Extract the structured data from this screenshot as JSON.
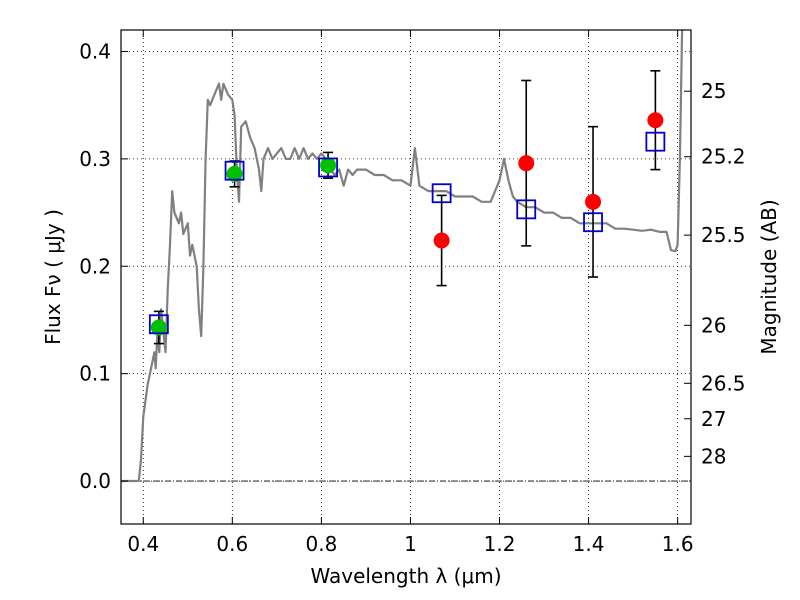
{
  "chart_data": {
    "type": "scatter",
    "xlabel": "Wavelength  λ (μm)",
    "ylabel": "Flux  Fν  ( μJy )",
    "ylabel_right": "Magnitude (AB)",
    "xlim": [
      0.35,
      1.63
    ],
    "ylim": [
      -0.04,
      0.42
    ],
    "grid": true,
    "x_ticks": [
      0.4,
      0.6,
      0.8,
      1.0,
      1.2,
      1.4,
      1.6
    ],
    "x_tick_labels": [
      "0.4",
      "0.6",
      "0.8",
      "1",
      "1.2",
      "1.4",
      "1.6"
    ],
    "y_ticks": [
      0.0,
      0.1,
      0.2,
      0.3,
      0.4
    ],
    "y_tick_labels": [
      "0.0",
      "0.1",
      "0.2",
      "0.3",
      "0.4"
    ],
    "right_ticks": [
      {
        "label": "25",
        "flux": 0.363
      },
      {
        "label": "25.2",
        "flux": 0.302
      },
      {
        "label": "25.5",
        "flux": 0.229
      },
      {
        "label": "26",
        "flux": 0.145
      },
      {
        "label": "26.5",
        "flux": 0.091
      },
      {
        "label": "27",
        "flux": 0.058
      },
      {
        "label": "28",
        "flux": 0.023
      }
    ],
    "series": [
      {
        "style": "line",
        "color": "#808080",
        "points": [
          [
            0.35,
            0.0
          ],
          [
            0.39,
            0.0
          ],
          [
            0.395,
            0.02
          ],
          [
            0.4,
            0.06
          ],
          [
            0.41,
            0.09
          ],
          [
            0.42,
            0.11
          ],
          [
            0.425,
            0.12
          ],
          [
            0.428,
            0.105
          ],
          [
            0.432,
            0.14
          ],
          [
            0.436,
            0.12
          ],
          [
            0.44,
            0.16
          ],
          [
            0.445,
            0.14
          ],
          [
            0.45,
            0.12
          ],
          [
            0.455,
            0.18
          ],
          [
            0.46,
            0.22
          ],
          [
            0.465,
            0.27
          ],
          [
            0.47,
            0.25
          ],
          [
            0.48,
            0.24
          ],
          [
            0.485,
            0.25
          ],
          [
            0.49,
            0.23
          ],
          [
            0.5,
            0.24
          ],
          [
            0.505,
            0.21
          ],
          [
            0.51,
            0.22
          ],
          [
            0.52,
            0.2
          ],
          [
            0.525,
            0.16
          ],
          [
            0.53,
            0.135
          ],
          [
            0.535,
            0.2
          ],
          [
            0.54,
            0.3
          ],
          [
            0.545,
            0.355
          ],
          [
            0.55,
            0.35
          ],
          [
            0.56,
            0.36
          ],
          [
            0.57,
            0.37
          ],
          [
            0.575,
            0.355
          ],
          [
            0.58,
            0.37
          ],
          [
            0.59,
            0.36
          ],
          [
            0.6,
            0.355
          ],
          [
            0.605,
            0.34
          ],
          [
            0.61,
            0.29
          ],
          [
            0.615,
            0.26
          ],
          [
            0.62,
            0.33
          ],
          [
            0.63,
            0.335
          ],
          [
            0.64,
            0.32
          ],
          [
            0.65,
            0.31
          ],
          [
            0.66,
            0.29
          ],
          [
            0.665,
            0.27
          ],
          [
            0.67,
            0.3
          ],
          [
            0.68,
            0.31
          ],
          [
            0.69,
            0.3
          ],
          [
            0.7,
            0.305
          ],
          [
            0.71,
            0.31
          ],
          [
            0.72,
            0.3
          ],
          [
            0.73,
            0.3
          ],
          [
            0.74,
            0.31
          ],
          [
            0.75,
            0.3
          ],
          [
            0.76,
            0.31
          ],
          [
            0.77,
            0.3
          ],
          [
            0.78,
            0.305
          ],
          [
            0.79,
            0.3
          ],
          [
            0.8,
            0.305
          ],
          [
            0.81,
            0.3
          ],
          [
            0.82,
            0.29
          ],
          [
            0.83,
            0.285
          ],
          [
            0.84,
            0.29
          ],
          [
            0.85,
            0.275
          ],
          [
            0.86,
            0.29
          ],
          [
            0.87,
            0.285
          ],
          [
            0.88,
            0.29
          ],
          [
            0.89,
            0.29
          ],
          [
            0.9,
            0.29
          ],
          [
            0.92,
            0.285
          ],
          [
            0.94,
            0.285
          ],
          [
            0.96,
            0.28
          ],
          [
            0.98,
            0.28
          ],
          [
            1.0,
            0.275
          ],
          [
            1.01,
            0.31
          ],
          [
            1.02,
            0.275
          ],
          [
            1.04,
            0.27
          ],
          [
            1.06,
            0.27
          ],
          [
            1.08,
            0.27
          ],
          [
            1.1,
            0.265
          ],
          [
            1.12,
            0.265
          ],
          [
            1.14,
            0.265
          ],
          [
            1.16,
            0.26
          ],
          [
            1.18,
            0.26
          ],
          [
            1.19,
            0.27
          ],
          [
            1.2,
            0.28
          ],
          [
            1.21,
            0.3
          ],
          [
            1.22,
            0.28
          ],
          [
            1.23,
            0.265
          ],
          [
            1.24,
            0.26
          ],
          [
            1.26,
            0.255
          ],
          [
            1.28,
            0.255
          ],
          [
            1.3,
            0.25
          ],
          [
            1.32,
            0.25
          ],
          [
            1.34,
            0.245
          ],
          [
            1.36,
            0.245
          ],
          [
            1.38,
            0.24
          ],
          [
            1.4,
            0.24
          ],
          [
            1.42,
            0.24
          ],
          [
            1.44,
            0.24
          ],
          [
            1.46,
            0.235
          ],
          [
            1.48,
            0.235
          ],
          [
            1.5,
            0.234
          ],
          [
            1.52,
            0.233
          ],
          [
            1.54,
            0.234
          ],
          [
            1.56,
            0.232
          ],
          [
            1.575,
            0.232
          ],
          [
            1.585,
            0.215
          ],
          [
            1.595,
            0.214
          ],
          [
            1.6,
            0.22
          ],
          [
            1.605,
            0.3
          ],
          [
            1.61,
            0.42
          ],
          [
            1.615,
            0.43
          ]
        ]
      },
      {
        "style": "marker-circle",
        "color": "#00c000",
        "points": [
          {
            "x": 0.435,
            "y": 0.143,
            "err": 0.015
          },
          {
            "x": 0.605,
            "y": 0.286,
            "err": 0.012
          },
          {
            "x": 0.815,
            "y": 0.294,
            "err": 0.012
          }
        ]
      },
      {
        "style": "marker-square-open",
        "color": "#0000cc",
        "points": [
          {
            "x": 0.435,
            "y": 0.146
          },
          {
            "x": 0.605,
            "y": 0.289
          },
          {
            "x": 0.815,
            "y": 0.292
          },
          {
            "x": 1.07,
            "y": 0.268
          },
          {
            "x": 1.26,
            "y": 0.253
          },
          {
            "x": 1.41,
            "y": 0.241
          },
          {
            "x": 1.55,
            "y": 0.316
          }
        ]
      },
      {
        "style": "marker-circle",
        "color": "#ff0000",
        "points": [
          {
            "x": 1.07,
            "y": 0.224,
            "err": 0.042
          },
          {
            "x": 1.26,
            "y": 0.296,
            "err": 0.077
          },
          {
            "x": 1.41,
            "y": 0.26,
            "err": 0.07
          },
          {
            "x": 1.55,
            "y": 0.336,
            "err": 0.046
          }
        ]
      }
    ]
  }
}
